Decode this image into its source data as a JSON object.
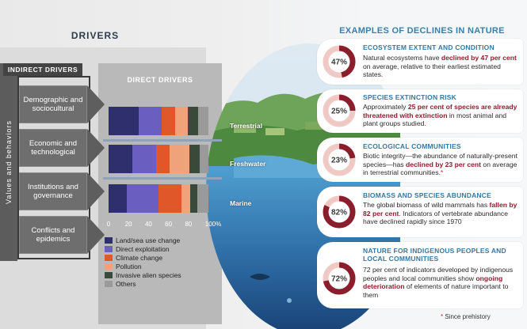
{
  "drivers_title": "DRIVERS",
  "values_label": "Values and behaviors",
  "indirect": {
    "header": "INDIRECT DRIVERS",
    "items": [
      {
        "label": "Demographic and sociocultural"
      },
      {
        "label": "Economic and technological"
      },
      {
        "label": "Institutions and governance"
      },
      {
        "label": "Conflicts and epidemics"
      }
    ]
  },
  "direct": {
    "title": "DIRECT DRIVERS",
    "realms": [
      "Terrestrial",
      "Freshwater",
      "Marine"
    ],
    "axis_ticks": [
      "0",
      "20",
      "40",
      "60",
      "80",
      "100%"
    ],
    "legend": [
      {
        "label": "Land/sea use change",
        "color": "#2f2f6e"
      },
      {
        "label": "Direct exploitation",
        "color": "#6a5fc1"
      },
      {
        "label": "Climate change",
        "color": "#e0582a"
      },
      {
        "label": "Pollution",
        "color": "#f0a37a"
      },
      {
        "label": "Invasive alien species",
        "color": "#3a4a3a"
      },
      {
        "label": "Others",
        "color": "#9a9a9a"
      }
    ]
  },
  "chart_data": {
    "type": "bar",
    "title": "DIRECT DRIVERS",
    "categories": [
      "Terrestrial",
      "Freshwater",
      "Marine"
    ],
    "stacked": true,
    "xlim": [
      0,
      100
    ],
    "series": [
      {
        "name": "Land/sea use change",
        "values": [
          30,
          24,
          18
        ]
      },
      {
        "name": "Direct exploitation",
        "values": [
          23,
          24,
          32
        ]
      },
      {
        "name": "Climate change",
        "values": [
          14,
          13,
          23
        ]
      },
      {
        "name": "Pollution",
        "values": [
          12,
          20,
          9
        ]
      },
      {
        "name": "Invasive alien species",
        "values": [
          11,
          10,
          7
        ]
      },
      {
        "name": "Others",
        "values": [
          10,
          9,
          11
        ]
      }
    ]
  },
  "examples_title": "EXAMPLES OF DECLINES IN NATURE",
  "cards": [
    {
      "percent": "47%",
      "fraction": 0.47,
      "heading": "ECOSYSTEM EXTENT AND CONDITION",
      "t1": "Natural ecosystems have ",
      "h1": "declined by 47 per cent",
      "t2": " on average, relative to their earliest estimated states.",
      "h2": "",
      "t3": "",
      "star": ""
    },
    {
      "percent": "25%",
      "fraction": 0.25,
      "heading": "SPECIES EXTINCTION RISK",
      "t1": "Approximately ",
      "h1": "25 per cent of species are already threatened with extinction",
      "t2": " in most animal and plant groups studied.",
      "h2": "",
      "t3": "",
      "star": ""
    },
    {
      "percent": "23%",
      "fraction": 0.23,
      "heading": "ECOLOGICAL COMMUNITIES",
      "t1": "Biotic integrity—the abundance of naturally-present species—has ",
      "h1": "declined by 23 per cent",
      "t2": " on average in terrestrial communities.",
      "h2": "",
      "t3": "",
      "star": "*"
    },
    {
      "percent": "82%",
      "fraction": 0.82,
      "heading": "BIOMASS AND SPECIES ABUNDANCE",
      "t1": "The global biomass of wild mammals has ",
      "h1": "fallen by 82 per cent",
      "t2": ". Indicators of vertebrate abundance have declined rapidly since 1970",
      "h2": "",
      "t3": "",
      "star": "*"
    },
    {
      "percent": "72%",
      "fraction": 0.72,
      "heading": "NATURE FOR INDIGENOUS PEOPLES AND LOCAL COMMUNITIES",
      "t1": "72 per cent of indicators developed by indigenous peoples and local communities show ",
      "h1": "ongoing deterioration",
      "t2": " of elements of nature important to them",
      "h2": "",
      "t3": "",
      "star": ""
    }
  ],
  "footnote": {
    "marker": "*",
    "text": " Since prehistory"
  }
}
